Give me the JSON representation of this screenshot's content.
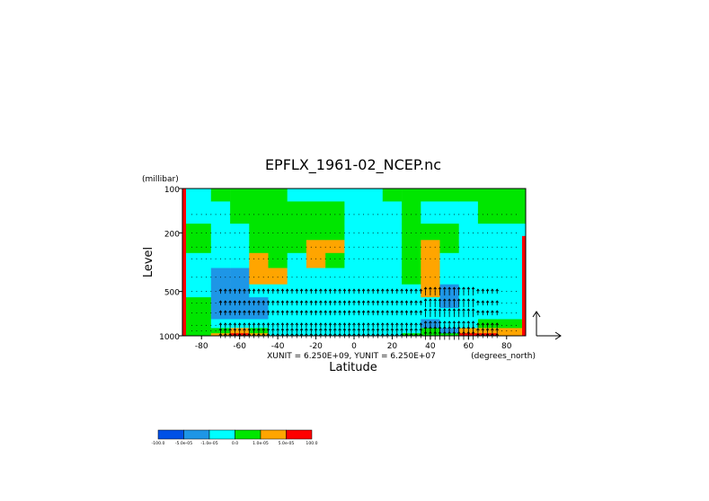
{
  "chart_data": {
    "type": "heatmap",
    "title": "EPFLX_1961-02_NCEP.nc",
    "ylabel": "Level",
    "yunit_label": "(millibar)",
    "xlabel": "Latitude",
    "xunit_label": "(degrees_north)",
    "vector_scale_label": "XUNIT = 6.250E+09, YUNIT = 6.250E+07",
    "xlim": [
      -90,
      90
    ],
    "ylim": [
      1000,
      100
    ],
    "yscale": "log",
    "x_ticks": [
      "-80",
      "-60",
      "-40",
      "-20",
      "0",
      "20",
      "40",
      "60",
      "80"
    ],
    "x_tick_values": [
      -80,
      -60,
      -40,
      -20,
      0,
      20,
      40,
      60,
      80
    ],
    "y_ticks": [
      "100",
      "200",
      "500",
      "1000"
    ],
    "y_tick_values": [
      100,
      200,
      500,
      1000
    ],
    "levels_mb": [
      100,
      150,
      200,
      250,
      300,
      400,
      500,
      600,
      700,
      850,
      925,
      1000
    ],
    "colorbar": {
      "colors": [
        "#0050e6",
        "#1e96e6",
        "#00ffff",
        "#00e600",
        "#ffa500",
        "#ff0000"
      ],
      "labels": [
        "-100.0",
        "-5.0e-05",
        "-1.0e-05",
        "0.0",
        "1.0e-05",
        "5.0e-05",
        "100.0"
      ],
      "boundaries": [
        -100.0,
        -5e-05,
        -1e-05,
        0.0,
        1e-05,
        5e-05,
        100.0
      ]
    },
    "series": [
      {
        "lat": -80,
        "values_e5": [
          -0.6,
          -0.6,
          0.7,
          0.6,
          -0.6,
          -0.8,
          -0.5,
          0.3,
          0.4,
          0.5,
          0.6,
          0.6
        ]
      },
      {
        "lat": -70,
        "values_e5": [
          0.4,
          -0.6,
          -0.3,
          -0.6,
          -0.7,
          -2.0,
          -2.0,
          -2.0,
          -1.2,
          -0.6,
          0.4,
          1.3
        ]
      },
      {
        "lat": -60,
        "values_e5": [
          0.4,
          0.5,
          -0.6,
          -0.8,
          -0.7,
          -2.2,
          -2.5,
          -2.2,
          -1.5,
          -0.5,
          2.0,
          6.0
        ]
      },
      {
        "lat": -50,
        "values_e5": [
          0.4,
          0.5,
          0.4,
          0.6,
          1.3,
          1.4,
          -0.4,
          -2.0,
          -1.5,
          -0.5,
          0.4,
          1.3
        ]
      },
      {
        "lat": -40,
        "values_e5": [
          0.6,
          0.7,
          0.5,
          0.5,
          0.7,
          1.4,
          -0.4,
          -0.6,
          -0.6,
          -0.3,
          -0.6,
          -0.6
        ]
      },
      {
        "lat": -30,
        "values_e5": [
          -0.6,
          0.4,
          0.5,
          0.4,
          -0.6,
          -0.5,
          -0.6,
          -0.6,
          -0.7,
          -0.6,
          -0.6,
          -0.6
        ]
      },
      {
        "lat": -20,
        "values_e5": [
          -0.5,
          0.4,
          0.5,
          1.3,
          1.3,
          -0.5,
          -0.6,
          -0.6,
          -0.6,
          -0.5,
          -0.5,
          -0.5
        ]
      },
      {
        "lat": -10,
        "values_e5": [
          -0.5,
          0.5,
          0.7,
          1.3,
          0.6,
          -0.5,
          -0.4,
          -0.6,
          -0.4,
          -0.3,
          -0.3,
          -0.4
        ]
      },
      {
        "lat": 0,
        "values_e5": [
          -0.5,
          -0.5,
          -0.6,
          -0.6,
          -0.5,
          -0.6,
          -0.5,
          -0.6,
          -0.6,
          -0.4,
          -0.4,
          -0.4
        ]
      },
      {
        "lat": 10,
        "values_e5": [
          -0.6,
          -0.5,
          -0.6,
          -0.5,
          -0.6,
          -0.6,
          -0.6,
          -0.5,
          -0.6,
          -0.4,
          -0.4,
          -0.5
        ]
      },
      {
        "lat": 20,
        "values_e5": [
          0.5,
          -0.6,
          -0.5,
          -0.6,
          -0.6,
          -0.6,
          -0.7,
          -0.6,
          -0.6,
          -0.5,
          -0.5,
          -0.5
        ]
      },
      {
        "lat": 30,
        "values_e5": [
          0.5,
          0.4,
          0.5,
          0.6,
          0.5,
          0.4,
          -0.6,
          -0.6,
          -0.6,
          -0.5,
          -0.5,
          0.3
        ]
      },
      {
        "lat": 40,
        "values_e5": [
          0.4,
          -0.6,
          0.4,
          1.4,
          1.4,
          1.5,
          1.3,
          -0.6,
          -0.7,
          -1.2,
          0.4,
          0.7
        ]
      },
      {
        "lat": 50,
        "values_e5": [
          0.4,
          -0.6,
          0.5,
          0.6,
          -0.6,
          -0.7,
          -2.0,
          -1.5,
          -0.6,
          -1.0,
          -1.2,
          0.6
        ]
      },
      {
        "lat": 60,
        "values_e5": [
          0.4,
          -0.6,
          -0.6,
          -0.6,
          -0.6,
          -0.7,
          -0.7,
          -0.6,
          -0.6,
          -0.5,
          1.3,
          6.0
        ]
      },
      {
        "lat": 70,
        "values_e5": [
          0.6,
          0.5,
          -0.6,
          -0.6,
          -0.6,
          -0.6,
          -0.5,
          -0.6,
          -0.6,
          0.6,
          1.4,
          6.0
        ]
      },
      {
        "lat": 80,
        "values_e5": [
          0.6,
          0.5,
          -0.5,
          -0.5,
          -0.4,
          -0.5,
          -0.6,
          -0.6,
          -0.6,
          0.6,
          1.3,
          1.3
        ]
      }
    ],
    "vector_region": {
      "lat_min": -70,
      "lat_max": 75,
      "p_min_mb": 450
    }
  }
}
